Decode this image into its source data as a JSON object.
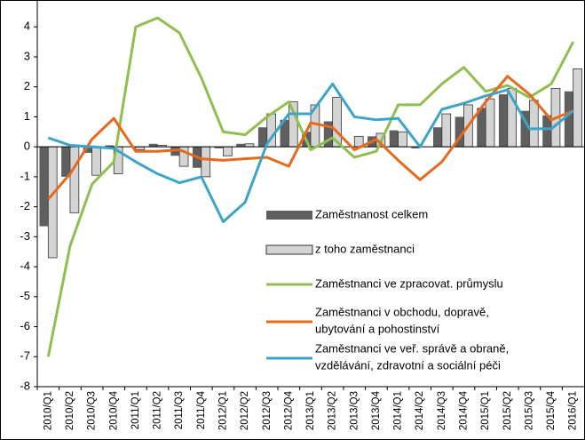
{
  "chart_data": {
    "type": "bar_line",
    "categories": [
      "2010/Q1",
      "2010/Q2",
      "2010/Q3",
      "2010/Q4",
      "2011/Q1",
      "2011/Q2",
      "2011/Q3",
      "2011/Q4",
      "2012/Q1",
      "2012/Q2",
      "2012/Q3",
      "2012/Q4",
      "2013/Q1",
      "2013/Q2",
      "2013/Q3",
      "2013/Q4",
      "2014/Q1",
      "2014/Q2",
      "2014/Q3",
      "2014/Q4",
      "2015/Q1",
      "2015/Q2",
      "2015/Q3",
      "2015/Q4",
      "2016/Q1"
    ],
    "series": [
      {
        "name": "Zaměstnanost celkem",
        "type": "bar",
        "color": "#5f5f5f",
        "values": [
          -2.65,
          -1.0,
          -0.2,
          0.05,
          0.0,
          0.1,
          -0.3,
          -0.7,
          -0.05,
          0.1,
          0.65,
          0.9,
          0.5,
          0.85,
          0.0,
          0.35,
          0.55,
          -0.05,
          0.65,
          1.0,
          1.3,
          1.75,
          1.2,
          1.05,
          1.85
        ]
      },
      {
        "name": "z toho zaměstnanci",
        "type": "bar",
        "color": "#d4d4d4",
        "values": [
          -3.7,
          -2.2,
          -0.95,
          -0.9,
          -0.1,
          0.05,
          -0.65,
          -1.0,
          -0.3,
          0.1,
          1.1,
          1.5,
          1.4,
          1.65,
          0.35,
          0.45,
          0.5,
          0.0,
          1.1,
          1.4,
          1.6,
          1.95,
          1.55,
          1.95,
          2.6
        ]
      },
      {
        "name": "Zaměstnanci ve zpracovat. průmyslu",
        "type": "line",
        "color": "#8fc04f",
        "values": [
          -7.0,
          -3.3,
          -1.25,
          -0.5,
          4.0,
          4.3,
          3.8,
          2.3,
          0.5,
          0.4,
          1.0,
          1.5,
          -0.1,
          0.3,
          -0.35,
          -0.15,
          1.4,
          1.4,
          2.1,
          2.65,
          1.85,
          2.05,
          1.65,
          2.1,
          3.5
        ]
      },
      {
        "name": "Zaměstnanci v obchodu, dopravě,\nubytování a pohostinství",
        "type": "line",
        "color": "#e8691b",
        "values": [
          -1.75,
          -0.9,
          0.25,
          0.95,
          -0.15,
          -0.15,
          -0.1,
          -0.4,
          -0.45,
          -0.4,
          -0.35,
          -0.65,
          0.8,
          0.65,
          -0.1,
          0.25,
          -0.45,
          -1.1,
          -0.5,
          0.5,
          1.5,
          2.35,
          1.75,
          0.9,
          1.2
        ]
      },
      {
        "name": "Zaměstnanci ve veř. správě a obraně,\nvzdělávání, zdravotní a sociální péči",
        "type": "line",
        "color": "#3aa5c8",
        "values": [
          0.3,
          0.05,
          0.0,
          -0.05,
          -0.5,
          -0.9,
          -1.2,
          -1.0,
          -2.5,
          -1.85,
          0.1,
          1.1,
          1.1,
          2.1,
          1.0,
          0.9,
          0.95,
          0.0,
          1.25,
          1.45,
          1.7,
          1.9,
          0.6,
          0.6,
          1.2
        ]
      }
    ],
    "ylim": [
      -8,
      4.6
    ],
    "yticks": [
      -8,
      -7,
      -6,
      -5,
      -4,
      -3,
      -2,
      -1,
      0,
      1,
      2,
      3,
      4
    ],
    "grid": false
  }
}
